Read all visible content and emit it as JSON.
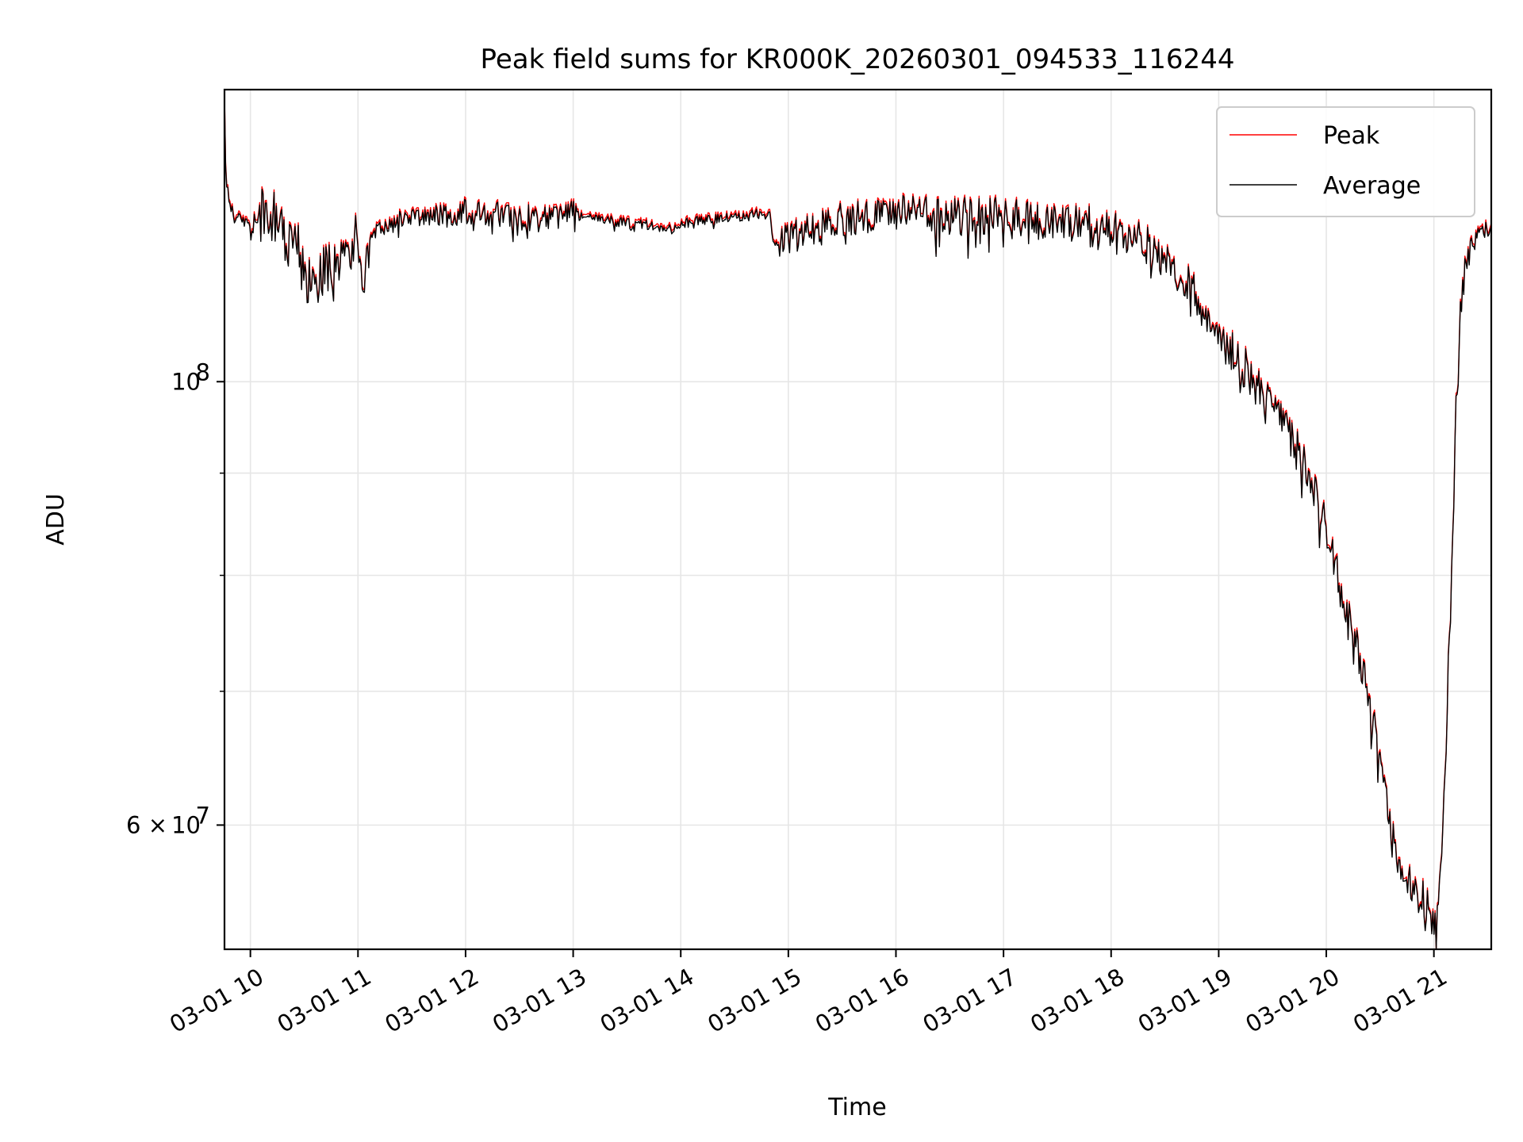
{
  "chart_data": {
    "type": "line",
    "title": "Peak field sums for KR000K_20260301_094533_116244",
    "xlabel": "Time",
    "ylabel": "ADU",
    "y_scale": "log",
    "grid": true,
    "legend_position": "top-right",
    "x_range": [
      "2026-03-01 09:45:33",
      "2026-03-01 21:32:00"
    ],
    "y_range": [
      52000000,
      140000000
    ],
    "x_ticks": [
      {
        "t": "2026-03-01 10:00",
        "label": "03-01 10"
      },
      {
        "t": "2026-03-01 11:00",
        "label": "03-01 11"
      },
      {
        "t": "2026-03-01 12:00",
        "label": "03-01 12"
      },
      {
        "t": "2026-03-01 13:00",
        "label": "03-01 13"
      },
      {
        "t": "2026-03-01 14:00",
        "label": "03-01 14"
      },
      {
        "t": "2026-03-01 15:00",
        "label": "03-01 15"
      },
      {
        "t": "2026-03-01 16:00",
        "label": "03-01 16"
      },
      {
        "t": "2026-03-01 17:00",
        "label": "03-01 17"
      },
      {
        "t": "2026-03-01 18:00",
        "label": "03-01 18"
      },
      {
        "t": "2026-03-01 19:00",
        "label": "03-01 19"
      },
      {
        "t": "2026-03-01 20:00",
        "label": "03-01 20"
      },
      {
        "t": "2026-03-01 21:00",
        "label": "03-01 21"
      }
    ],
    "y_major_ticks": [
      {
        "value": 60000000,
        "mantissa": "6",
        "exponent": "7"
      },
      {
        "value": 100000000,
        "mantissa": "",
        "exponent": "8"
      }
    ],
    "y_minor_ticks": [
      70000000,
      80000000,
      90000000
    ],
    "series": [
      {
        "name": "Peak",
        "color": "#ff0000"
      },
      {
        "name": "Average",
        "color": "#000000"
      }
    ],
    "envelope": [
      [
        "2026-03-01 09:45:33",
        140000000
      ],
      [
        "2026-03-01 09:46",
        128000000
      ],
      [
        "2026-03-01 09:48",
        123000000
      ],
      [
        "2026-03-01 09:50",
        122000000
      ],
      [
        "2026-03-01 09:55",
        120000000
      ],
      [
        "2026-03-01 10:00",
        120500000
      ],
      [
        "2026-03-01 10:10",
        121500000
      ],
      [
        "2026-03-01 10:20",
        120000000
      ],
      [
        "2026-03-01 10:25",
        118000000
      ],
      [
        "2026-03-01 10:30",
        115000000
      ],
      [
        "2026-03-01 10:35",
        112000000
      ],
      [
        "2026-03-01 10:40",
        113500000
      ],
      [
        "2026-03-01 10:45",
        114500000
      ],
      [
        "2026-03-01 10:50",
        115000000
      ],
      [
        "2026-03-01 10:55",
        116500000
      ],
      [
        "2026-03-01 11:00",
        118000000
      ],
      [
        "2026-03-01 11:03",
        110000000
      ],
      [
        "2026-03-01 11:05",
        116000000
      ],
      [
        "2026-03-01 11:10",
        118500000
      ],
      [
        "2026-03-01 11:20",
        120000000
      ],
      [
        "2026-03-01 11:30",
        120800000
      ],
      [
        "2026-03-01 11:45",
        121200000
      ],
      [
        "2026-03-01 12:00",
        121500000
      ],
      [
        "2026-03-01 12:15",
        121200000
      ],
      [
        "2026-03-01 12:30",
        120800000
      ],
      [
        "2026-03-01 12:45",
        120700000
      ],
      [
        "2026-03-01 13:00",
        121300000
      ],
      [
        "2026-03-01 13:15",
        120700000
      ],
      [
        "2026-03-01 13:30",
        120000000
      ],
      [
        "2026-03-01 13:45",
        119700000
      ],
      [
        "2026-03-01 13:55",
        119200000
      ],
      [
        "2026-03-01 14:05",
        120200000
      ],
      [
        "2026-03-01 14:20",
        120700000
      ],
      [
        "2026-03-01 14:35",
        121000000
      ],
      [
        "2026-03-01 14:45",
        121300000
      ],
      [
        "2026-03-01 14:50",
        121000000
      ],
      [
        "2026-03-01 14:52",
        117000000
      ],
      [
        "2026-03-01 14:55",
        117800000
      ],
      [
        "2026-03-01 15:05",
        118200000
      ],
      [
        "2026-03-01 15:15",
        119000000
      ],
      [
        "2026-03-01 15:30",
        120500000
      ],
      [
        "2026-03-01 15:45",
        121000000
      ],
      [
        "2026-03-01 16:00",
        121600000
      ],
      [
        "2026-03-01 16:15",
        121300000
      ],
      [
        "2026-03-01 16:30",
        121100000
      ],
      [
        "2026-03-01 16:45",
        121000000
      ],
      [
        "2026-03-01 17:00",
        120800000
      ],
      [
        "2026-03-01 17:15",
        120200000
      ],
      [
        "2026-03-01 17:30",
        119700000
      ],
      [
        "2026-03-01 17:45",
        119700000
      ],
      [
        "2026-03-01 18:00",
        118800000
      ],
      [
        "2026-03-01 18:15",
        117700000
      ],
      [
        "2026-03-01 18:30",
        115500000
      ],
      [
        "2026-03-01 18:40",
        113000000
      ],
      [
        "2026-03-01 18:50",
        110000000
      ],
      [
        "2026-03-01 19:00",
        105500000
      ],
      [
        "2026-03-01 19:15",
        101500000
      ],
      [
        "2026-03-01 19:30",
        97000000
      ],
      [
        "2026-03-01 19:45",
        92000000
      ],
      [
        "2026-03-01 20:00",
        84500000
      ],
      [
        "2026-03-01 20:10",
        78000000
      ],
      [
        "2026-03-01 20:20",
        72000000
      ],
      [
        "2026-03-01 20:30",
        64500000
      ],
      [
        "2026-03-01 20:40",
        56800000
      ],
      [
        "2026-03-01 20:50",
        55500000
      ],
      [
        "2026-03-01 20:58",
        54500000
      ],
      [
        "2026-03-01 21:01",
        53000000
      ],
      [
        "2026-03-01 21:03",
        56000000
      ],
      [
        "2026-03-01 21:06",
        64000000
      ],
      [
        "2026-03-01 21:09",
        75000000
      ],
      [
        "2026-03-01 21:12",
        95000000
      ],
      [
        "2026-03-01 21:15",
        108000000
      ],
      [
        "2026-03-01 21:18",
        116000000
      ],
      [
        "2026-03-01 21:22",
        117500000
      ],
      [
        "2026-03-01 21:26",
        118500000
      ],
      [
        "2026-03-01 21:29",
        119000000
      ],
      [
        "2026-03-01 21:32",
        118500000
      ]
    ]
  }
}
